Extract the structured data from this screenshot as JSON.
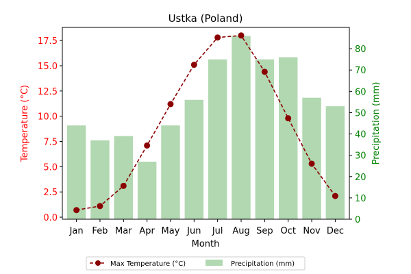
{
  "chart_data": {
    "type": "bar",
    "title": "Ustka (Poland)",
    "xlabel": "Month",
    "categories": [
      "Jan",
      "Feb",
      "Mar",
      "Apr",
      "May",
      "Jun",
      "Jul",
      "Aug",
      "Sep",
      "Oct",
      "Nov",
      "Dec"
    ],
    "left_axis": {
      "label": "Temperature (°C)",
      "color": "#ff0000",
      "ylim": [
        -0.2,
        18.8
      ],
      "ticks": [
        "0.0",
        "2.5",
        "5.0",
        "7.5",
        "10.0",
        "12.5",
        "15.0",
        "17.5"
      ]
    },
    "right_axis": {
      "label": "Precipitation (mm)",
      "color": "#008000",
      "ylim": [
        0,
        90
      ],
      "ticks": [
        "0",
        "10",
        "20",
        "30",
        "40",
        "50",
        "60",
        "70",
        "80"
      ]
    },
    "series": [
      {
        "name": "Max Temperature (°C)",
        "type": "line",
        "axis": "left",
        "color": "#8b0000",
        "values": [
          0.7,
          1.1,
          3.1,
          7.1,
          11.2,
          15.1,
          17.8,
          18.0,
          14.4,
          9.8,
          5.3,
          2.1
        ]
      },
      {
        "name": "Precipitation (mm)",
        "type": "bar",
        "axis": "right",
        "color": "#b2d8b2",
        "values": [
          44,
          37,
          39,
          27,
          44,
          56,
          75,
          86,
          75,
          76,
          57,
          53
        ]
      }
    ],
    "grid": false,
    "legend_position": "bottom-center"
  }
}
